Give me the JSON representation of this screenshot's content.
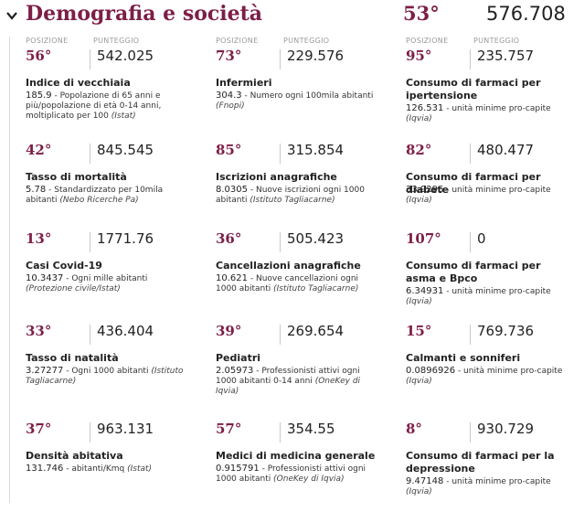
{
  "header": {
    "title": "Demografia e società",
    "overall_position": "53°",
    "overall_score": "576.708"
  },
  "labels": {
    "posizione": "POSIZIONE",
    "punteggio": "PUNTEGGIO"
  },
  "cards": [
    {
      "position": "56°",
      "score": "542.025",
      "name": "Indice di vecchiaia",
      "value": "185.9",
      "desc": " - Popolazione di 65 anni e più/popolazione di età 0-14 anni, moltiplicato per 100 ",
      "source": "(Istat)"
    },
    {
      "position": "73°",
      "score": "229.576",
      "name": "Infermieri",
      "value": "304.3",
      "desc": " - Numero ogni 100mila abitanti ",
      "source": "(Fnopi)"
    },
    {
      "position": "95°",
      "score": "235.757",
      "name": "Consumo di farmaci per ipertensione",
      "value": "126.531",
      "desc": " - unità minime pro-capite ",
      "source": "(Iqvia)"
    },
    {
      "position": "42°",
      "score": "845.545",
      "name": "Tasso di mortalità",
      "value": "5.78",
      "desc": " - Standardizzato per 10mila abitanti ",
      "source": "(Nebo Ricerche Pa)"
    },
    {
      "position": "85°",
      "score": "315.854",
      "name": "Iscrizioni anagrafiche",
      "value": "8.0305",
      "desc": " - Nuove iscrizioni ogni 1000 abitanti ",
      "source": "(Istituto Tagliacarne)"
    },
    {
      "position": "82°",
      "score": "480.477",
      "name": "Consumo di farmaci per diabete",
      "value": "33.9296",
      "desc": " - unità minime pro-capite ",
      "source": "(Iqvia)"
    },
    {
      "position": "13°",
      "score": "1771.76",
      "name": "Casi Covid-19",
      "value": "10.3437",
      "desc": " - Ogni mille abitanti ",
      "source": "(Protezione civile/Istat)"
    },
    {
      "position": "36°",
      "score": "505.423",
      "name": "Cancellazioni anagrafiche",
      "value": "10.621",
      "desc": " - Nuove cancellazioni ogni 1000 abitanti ",
      "source": "(Istituto Tagliacarne)"
    },
    {
      "position": "107°",
      "score": "0",
      "name": "Consumo di farmaci per asma e Bpco",
      "value": "6.34931",
      "desc": " - unità minime pro-capite ",
      "source": "(Iqvia)"
    },
    {
      "position": "33°",
      "score": "436.404",
      "name": "Tasso di natalità",
      "value": "3.27277",
      "desc": " - Ogni 1000 abitanti ",
      "source": "(Istituto Tagliacarne)"
    },
    {
      "position": "39°",
      "score": "269.654",
      "name": "Pediatri",
      "value": "2.05973",
      "desc": " - Professionisti attivi ogni 1000 abitanti 0-14 anni ",
      "source": "(OneKey di Iqvia)"
    },
    {
      "position": "15°",
      "score": "769.736",
      "name": "Calmanti e sonniferi",
      "value": "0.0896926",
      "desc": " - unità minime pro-capite ",
      "source": "(Iqvia)"
    },
    {
      "position": "37°",
      "score": "963.131",
      "name": "Densità abitativa",
      "value": "131.746",
      "desc": " - abitanti/Kmq ",
      "source": "(Istat)"
    },
    {
      "position": "57°",
      "score": "354.55",
      "name": "Medici di medicina generale",
      "value": "0.915791",
      "desc": " - Professionisti attivi ogni 1000 abitanti ",
      "source": "(OneKey di Iqvia)"
    },
    {
      "position": "8°",
      "score": "930.729",
      "name": "Consumo di farmaci per la depressione",
      "value": "9.47148",
      "desc": " - unità minime pro-capite ",
      "source": "(Iqvia)"
    }
  ]
}
